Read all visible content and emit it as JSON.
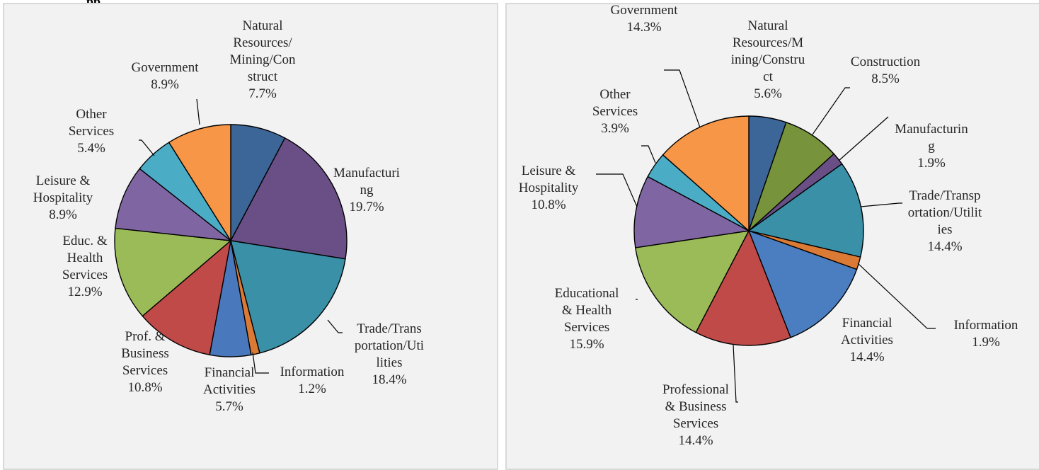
{
  "header": {
    "clipped_text": "pp"
  },
  "chart_data": [
    {
      "type": "pie",
      "slices": [
        {
          "name": "Natural Resources/Mining/Construct",
          "value": 7.7,
          "label": "7.7%",
          "color": "#3d6698"
        },
        {
          "name": "Manufacturing",
          "value": 19.7,
          "label": "19.7%",
          "color": "#694f86"
        },
        {
          "name": "Trade/Transportation/Utilities",
          "value": 18.4,
          "label": "18.4%",
          "color": "#3a90a7"
        },
        {
          "name": "Information",
          "value": 1.2,
          "label": "1.2%",
          "color": "#db7a34"
        },
        {
          "name": "Financial Activities",
          "value": 5.7,
          "label": "5.7%",
          "color": "#4a78bd"
        },
        {
          "name": "Prof. & Business Services",
          "value": 10.8,
          "label": "10.8%",
          "color": "#bf4a48"
        },
        {
          "name": "Educ. & Health Services",
          "value": 12.9,
          "label": "12.9%",
          "color": "#9bbb59"
        },
        {
          "name": "Leisure & Hospitality",
          "value": 8.9,
          "label": "8.9%",
          "color": "#7f66a3"
        },
        {
          "name": "Other Services",
          "value": 5.4,
          "label": "5.4%",
          "color": "#4bacc6"
        },
        {
          "name": "Government",
          "value": 8.9,
          "label": "8.9%",
          "color": "#f79646"
        }
      ],
      "data_labels": [
        {
          "lines": [
            "Natural",
            "Resources/",
            "Mining/Con",
            "struct",
            "7.7%"
          ]
        },
        {
          "lines": [
            "Manufacturi",
            "ng",
            "19.7%"
          ]
        },
        {
          "lines": [
            "Trade/Trans",
            "portation/Uti",
            "lities",
            "18.4%"
          ]
        },
        {
          "lines": [
            "Information",
            "1.2%"
          ]
        },
        {
          "lines": [
            "Financial",
            "Activities",
            "5.7%"
          ]
        },
        {
          "lines": [
            "Prof. &",
            "Business",
            "Services",
            "10.8%"
          ]
        },
        {
          "lines": [
            "Educ. &",
            "Health",
            "Services",
            "12.9%"
          ]
        },
        {
          "lines": [
            "Leisure &",
            "Hospitality",
            "8.9%"
          ]
        },
        {
          "lines": [
            "Other",
            "Services",
            "5.4%"
          ]
        },
        {
          "lines": [
            "Government",
            "8.9%"
          ]
        }
      ]
    },
    {
      "type": "pie",
      "slices": [
        {
          "name": "Natural Resources/Mining/Construct",
          "value": 5.6,
          "label": "5.6%",
          "color": "#3d6698"
        },
        {
          "name": "Construction",
          "value": 8.5,
          "label": "8.5%",
          "color": "#77933c"
        },
        {
          "name": "Manufacturing",
          "value": 1.9,
          "label": "1.9%",
          "color": "#694f86"
        },
        {
          "name": "Trade/Transportation/Utilities",
          "value": 14.4,
          "label": "14.4%",
          "color": "#3a90a7"
        },
        {
          "name": "Information",
          "value": 1.9,
          "label": "1.9%",
          "color": "#db7a34"
        },
        {
          "name": "Financial Activities",
          "value": 14.4,
          "label": "14.4%",
          "color": "#4a7ec0"
        },
        {
          "name": "Professional & Business Services",
          "value": 14.4,
          "label": "14.4%",
          "color": "#bf4a48"
        },
        {
          "name": "Educational & Health Services",
          "value": 15.9,
          "label": "15.9%",
          "color": "#9bbb59"
        },
        {
          "name": "Leisure & Hospitality",
          "value": 10.8,
          "label": "10.8%",
          "color": "#7f66a3"
        },
        {
          "name": "Other Services",
          "value": 3.9,
          "label": "3.9%",
          "color": "#4bacc6"
        },
        {
          "name": "Government",
          "value": 14.3,
          "label": "14.3%",
          "color": "#f79646"
        }
      ],
      "data_labels": [
        {
          "lines": [
            "Natural",
            "Resources/M",
            "ining/Constru",
            "ct",
            "5.6%"
          ]
        },
        {
          "lines": [
            "Construction",
            "8.5%"
          ]
        },
        {
          "lines": [
            "Manufacturin",
            "g",
            "1.9%"
          ]
        },
        {
          "lines": [
            "Trade/Transp",
            "ortation/Utilit",
            "ies",
            "14.4%"
          ]
        },
        {
          "lines": [
            "Information",
            "1.9%"
          ]
        },
        {
          "lines": [
            "Financial",
            "Activities",
            "14.4%"
          ]
        },
        {
          "lines": [
            "Professional",
            "& Business",
            "Services",
            "14.4%"
          ]
        },
        {
          "lines": [
            "Educational",
            "& Health",
            "Services",
            "15.9%"
          ]
        },
        {
          "lines": [
            "Leisure &",
            "Hospitality",
            "10.8%"
          ]
        },
        {
          "lines": [
            "Other",
            "Services",
            "3.9%"
          ]
        },
        {
          "lines": [
            "Government",
            "14.3%"
          ]
        }
      ]
    }
  ]
}
